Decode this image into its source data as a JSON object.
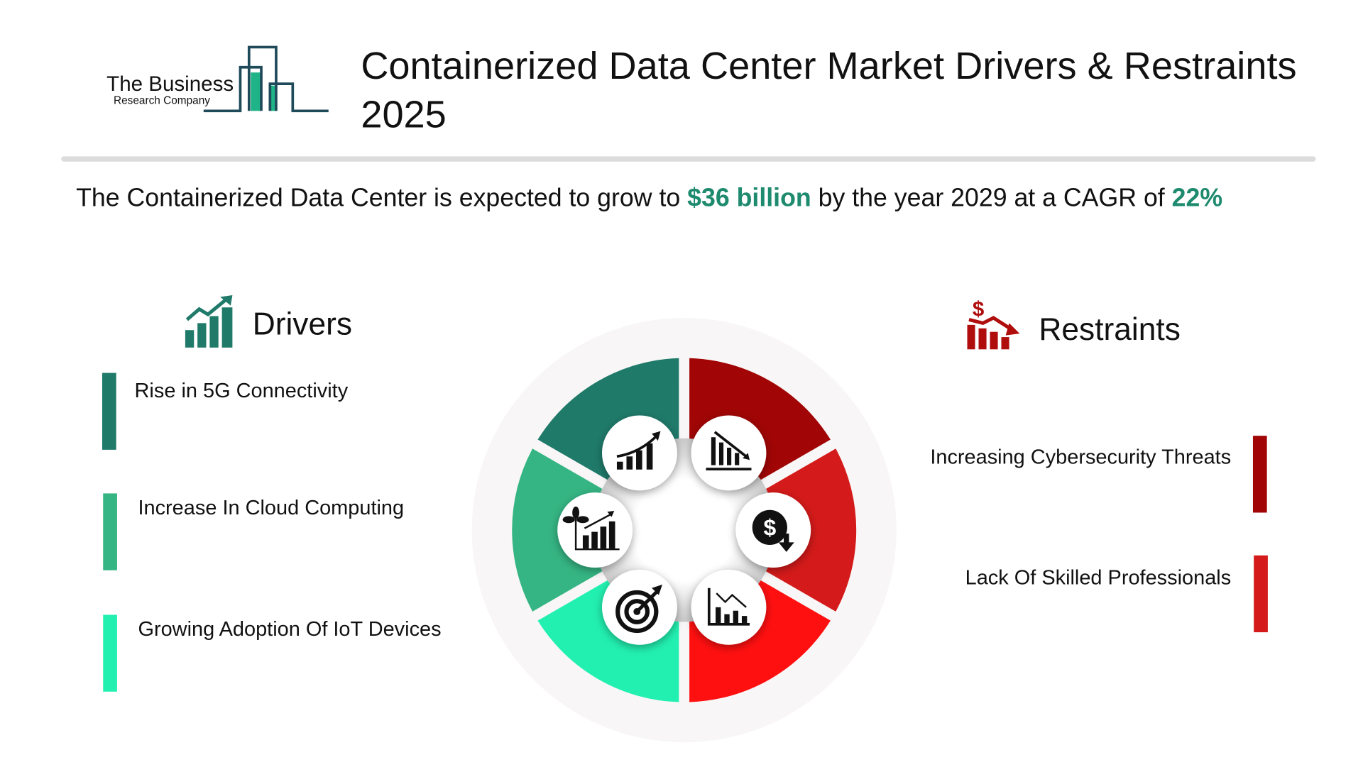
{
  "logo": {
    "line1": "The Business",
    "line2": "Research Company",
    "colors": {
      "outline": "#1f4a5a",
      "fill": "#1fb487"
    }
  },
  "header": {
    "title": "Containerized Data Center Market Drivers & Restraints 2025"
  },
  "summary": {
    "prefix": "The Containerized Data Center is expected to grow to ",
    "value": "$36 billion",
    "middle": " by the year 2029 at a CAGR of ",
    "cagr": "22%",
    "accent": "#1e8a6e"
  },
  "drivers": {
    "heading": "Drivers",
    "icon": "growth-chart-icon",
    "items": [
      {
        "label": "Rise in 5G Connectivity",
        "color": "#1f7a6a"
      },
      {
        "label": "Increase In Cloud Computing",
        "color": "#35b583"
      },
      {
        "label": "Growing Adoption Of IoT Devices",
        "color": "#22f0b0"
      }
    ]
  },
  "restraints": {
    "heading": "Restraints",
    "icon": "declining-dollar-chart-icon",
    "items": [
      {
        "label": "Increasing Cybersecurity Threats",
        "color": "#a10505"
      },
      {
        "label": "Lack Of Skilled Professionals",
        "color": "#d41a1a"
      }
    ]
  },
  "wheel": {
    "segments": [
      {
        "color": "#1f7a6a",
        "icon": "rising-chart-icon"
      },
      {
        "color": "#a10505",
        "icon": "declining-bar-chart-icon"
      },
      {
        "color": "#d41a1a",
        "icon": "dollar-down-icon"
      },
      {
        "color": "#ff1010",
        "icon": "falling-line-chart-icon"
      },
      {
        "color": "#22f0b0",
        "icon": "target-arrow-icon"
      },
      {
        "color": "#35b583",
        "icon": "plant-growth-chart-icon"
      }
    ]
  }
}
